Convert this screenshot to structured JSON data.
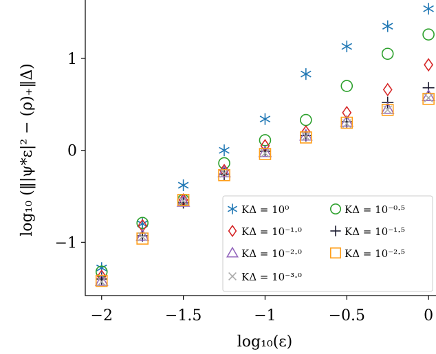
{
  "chart_data": {
    "type": "scatter",
    "xlabel": "log₁₀(ε)",
    "ylabel": "log₁₀ (‖|ψ*ε|² − (ρ)₊‖Δ)",
    "xlim": [
      -2.1,
      0.05
    ],
    "ylim": [
      -1.58,
      1.65
    ],
    "xticks": [
      -2,
      -1.5,
      -1,
      -0.5,
      0
    ],
    "xtick_labels": [
      "−2",
      "−1.5",
      "−1",
      "−0.5",
      "0"
    ],
    "yticks": [
      -1,
      0,
      1
    ],
    "ytick_labels": [
      "−1",
      "0",
      "1"
    ],
    "grid": false,
    "legend_position": "bottom-right",
    "x": [
      -2,
      -1.75,
      -1.5,
      -1.25,
      -1,
      -0.75,
      -0.5,
      -0.25,
      0
    ],
    "series": [
      {
        "name": "KΔ = 10⁰",
        "marker": "asterisk",
        "color": "#1f77b4",
        "values": [
          -1.28,
          -0.8,
          -0.38,
          0.0,
          0.34,
          0.83,
          1.13,
          1.35,
          1.54
        ]
      },
      {
        "name": "KΔ = 10⁻⁰·⁵",
        "marker": "circle",
        "color": "#2ca02c",
        "values": [
          -1.32,
          -0.79,
          -0.54,
          -0.14,
          0.11,
          0.33,
          0.7,
          1.05,
          1.26
        ]
      },
      {
        "name": "KΔ = 10⁻¹·⁰",
        "marker": "diamond",
        "color": "#d62728",
        "values": [
          -1.37,
          -0.82,
          -0.54,
          -0.22,
          0.05,
          0.2,
          0.41,
          0.66,
          0.93
        ]
      },
      {
        "name": "KΔ = 10⁻¹·⁵",
        "marker": "plus",
        "color": "#1a1a2e",
        "values": [
          -1.4,
          -0.93,
          -0.57,
          -0.26,
          -0.01,
          0.16,
          0.31,
          0.52,
          0.68
        ]
      },
      {
        "name": "KΔ = 10⁻²·⁰",
        "marker": "triangle",
        "color": "#9467bd",
        "values": [
          -1.42,
          -0.93,
          -0.56,
          -0.24,
          -0.02,
          0.16,
          0.31,
          0.45,
          0.59
        ]
      },
      {
        "name": "KΔ = 10⁻²·⁵",
        "marker": "square",
        "color": "#ff9f1c",
        "values": [
          -1.42,
          -0.96,
          -0.54,
          -0.27,
          -0.04,
          0.14,
          0.3,
          0.44,
          0.56
        ]
      },
      {
        "name": "KΔ = 10⁻³·⁰",
        "marker": "cross",
        "color": "#aaaaaa",
        "values": [
          -1.43,
          -0.94,
          -0.55,
          -0.25,
          -0.03,
          0.15,
          0.29,
          0.44,
          0.57
        ]
      }
    ]
  }
}
